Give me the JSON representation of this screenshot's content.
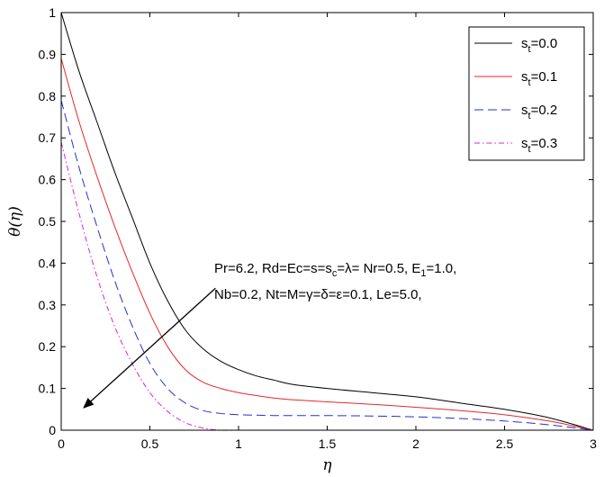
{
  "chart_data": {
    "type": "line",
    "xlabel": "η",
    "ylabel": "θ(η)",
    "xlim": [
      0,
      3
    ],
    "ylim": [
      0,
      1
    ],
    "xticks": [
      "0",
      "0.5",
      "1",
      "1.5",
      "2",
      "2.5",
      "3"
    ],
    "yticks": [
      "0",
      "0.1",
      "0.2",
      "0.3",
      "0.4",
      "0.5",
      "0.6",
      "0.7",
      "0.8",
      "0.9",
      "1"
    ],
    "grid": false,
    "legend_position": "top-right",
    "series": [
      {
        "label_main": "s",
        "label_sub": "t",
        "label_value": "=0.0",
        "color": "#000000",
        "dash": "solid",
        "x": [
          0,
          0.1,
          0.2,
          0.3,
          0.4,
          0.5,
          0.6,
          0.7,
          0.8,
          0.9,
          1.0,
          1.1,
          1.2,
          1.3,
          1.5,
          1.75,
          2.0,
          2.25,
          2.5,
          2.75,
          3.0
        ],
        "y": [
          1.0,
          0.86,
          0.74,
          0.62,
          0.51,
          0.4,
          0.31,
          0.24,
          0.195,
          0.165,
          0.145,
          0.13,
          0.12,
          0.11,
          0.1,
          0.09,
          0.08,
          0.065,
          0.05,
          0.03,
          0.0
        ]
      },
      {
        "label_main": "s",
        "label_sub": "t",
        "label_value": "=0.1",
        "color": "#e8262a",
        "dash": "solid",
        "x": [
          0,
          0.1,
          0.2,
          0.3,
          0.4,
          0.5,
          0.6,
          0.7,
          0.8,
          0.9,
          1.0,
          1.1,
          1.2,
          1.3,
          1.5,
          1.75,
          2.0,
          2.25,
          2.5,
          2.75,
          3.0
        ],
        "y": [
          0.89,
          0.74,
          0.61,
          0.49,
          0.38,
          0.28,
          0.2,
          0.145,
          0.115,
          0.1,
          0.09,
          0.083,
          0.077,
          0.073,
          0.068,
          0.062,
          0.055,
          0.047,
          0.037,
          0.022,
          0.0
        ]
      },
      {
        "label_main": "s",
        "label_sub": "t",
        "label_value": "=0.2",
        "color": "#2233cc",
        "dash": "10,5",
        "x": [
          0,
          0.1,
          0.2,
          0.3,
          0.4,
          0.5,
          0.6,
          0.7,
          0.8,
          0.9,
          1.0,
          1.1,
          1.2,
          1.3,
          1.5,
          1.75,
          2.0,
          2.25,
          2.5,
          2.75,
          3.0
        ],
        "y": [
          0.79,
          0.63,
          0.49,
          0.36,
          0.25,
          0.16,
          0.1,
          0.065,
          0.047,
          0.04,
          0.037,
          0.036,
          0.035,
          0.035,
          0.035,
          0.034,
          0.032,
          0.028,
          0.022,
          0.013,
          0.0
        ]
      },
      {
        "label_main": "s",
        "label_sub": "t",
        "label_value": "=0.3",
        "color": "#dd22dd",
        "dash": "6,3,1.5,3",
        "x": [
          0,
          0.1,
          0.2,
          0.3,
          0.4,
          0.5,
          0.6,
          0.7,
          0.8,
          0.9,
          1.0,
          1.1,
          1.2,
          1.3,
          1.5,
          1.75,
          2.0,
          2.25,
          2.5,
          2.75,
          3.0
        ],
        "y": [
          0.69,
          0.52,
          0.37,
          0.25,
          0.16,
          0.09,
          0.045,
          0.018,
          0.005,
          0.0,
          0.0,
          0.0,
          0.0,
          0.0,
          0.0,
          0.0,
          0.0,
          0.0,
          0.0,
          0.0,
          0.0
        ]
      }
    ],
    "annotation": {
      "lines": [
        [
          {
            "t": "Pr=6.2, Rd=Ec=s=s"
          },
          {
            "t": "c",
            "sub": true
          },
          {
            "t": "=λ= Nr=0.5, E"
          },
          {
            "t": "1",
            "sub": true
          },
          {
            "t": "=1.0,"
          }
        ],
        [
          {
            "t": "Nb=0.2, Nt=M=γ=δ=ε=0.1, Le=5.0,"
          }
        ]
      ],
      "arrow": {
        "from": [
          0.87,
          0.34
        ],
        "to": [
          0.13,
          0.055
        ]
      }
    }
  }
}
